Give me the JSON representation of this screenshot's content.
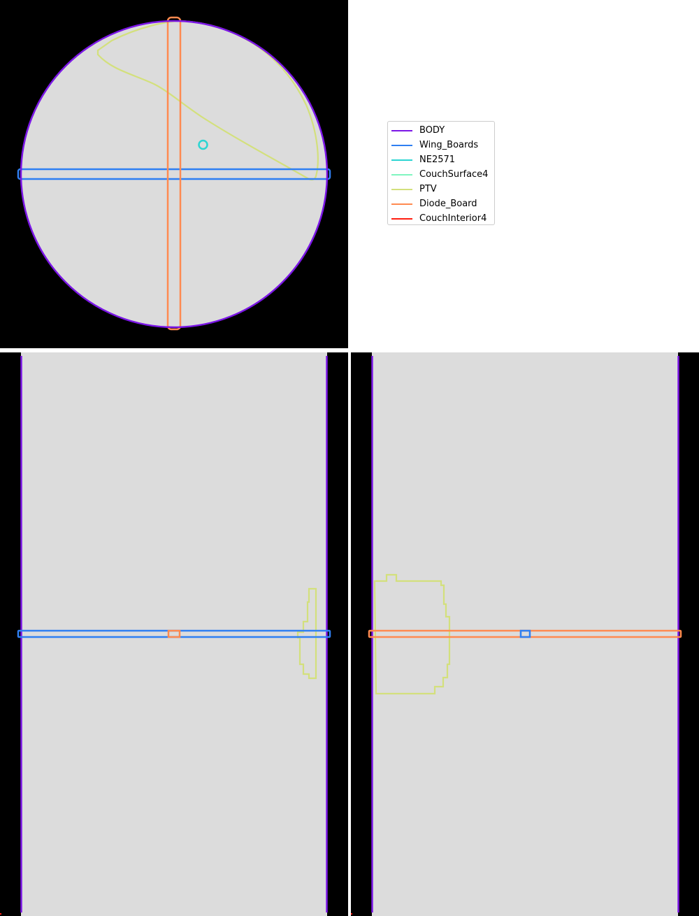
{
  "colors": {
    "background": "#000000",
    "phantom": "#dcdcdc",
    "BODY": "#7b16e6",
    "Wing_Boards": "#2f7ff2",
    "NE2571": "#2cd5d2",
    "CouchSurface4": "#7ff5c0",
    "PTV": "#d3e07c",
    "Diode_Board": "#ff8a50",
    "CouchInterior4": "#ff1e10"
  },
  "legend": [
    {
      "label": "BODY",
      "color": "#7b16e6"
    },
    {
      "label": "Wing_Boards",
      "color": "#2f7ff2"
    },
    {
      "label": "NE2571",
      "color": "#2cd5d2"
    },
    {
      "label": "CouchSurface4",
      "color": "#7ff5c0"
    },
    {
      "label": "PTV",
      "color": "#d3e07c"
    },
    {
      "label": "Diode_Board",
      "color": "#ff8a50"
    },
    {
      "label": "CouchInterior4",
      "color": "#ff1e10"
    }
  ],
  "views": [
    "axial",
    "coronal",
    "sagittal"
  ]
}
